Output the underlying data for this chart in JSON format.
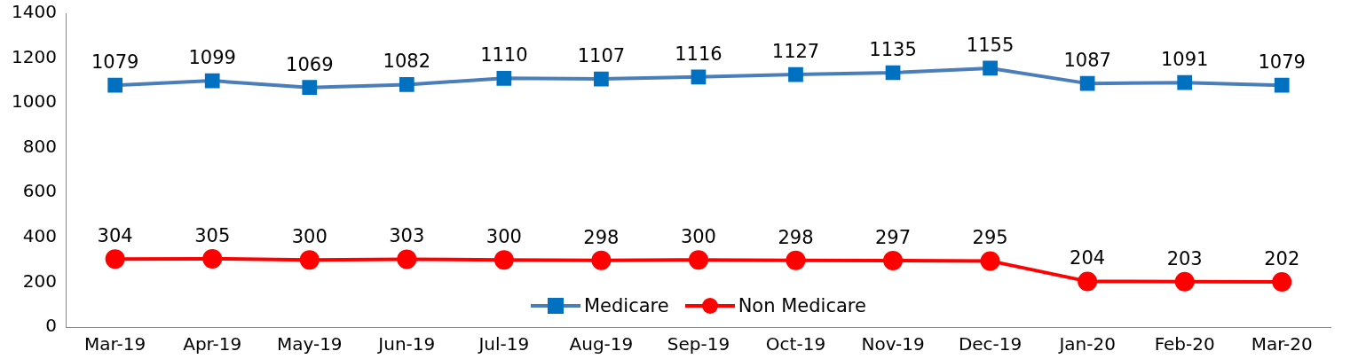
{
  "chart_data": {
    "type": "line",
    "categories": [
      "Mar-19",
      "Apr-19",
      "May-19",
      "Jun-19",
      "Jul-19",
      "Aug-19",
      "Sep-19",
      "Oct-19",
      "Nov-19",
      "Dec-19",
      "Jan-20",
      "Feb-20",
      "Mar-20"
    ],
    "series": [
      {
        "name": "Medicare",
        "color": "#4a7ebb",
        "marker": "square",
        "values": [
          1079,
          1099,
          1069,
          1082,
          1110,
          1107,
          1116,
          1127,
          1135,
          1155,
          1087,
          1091,
          1079
        ]
      },
      {
        "name": "Non Medicare",
        "color": "#ff0000",
        "marker": "circle",
        "values": [
          304,
          305,
          300,
          303,
          300,
          298,
          300,
          298,
          297,
          295,
          204,
          203,
          202
        ]
      }
    ],
    "ylim": [
      0,
      1400
    ],
    "yticks": [
      0,
      200,
      400,
      600,
      800,
      1000,
      1200,
      1400
    ],
    "grid": false,
    "legend": "bottom",
    "data_labels": true,
    "line_style": "solid"
  }
}
